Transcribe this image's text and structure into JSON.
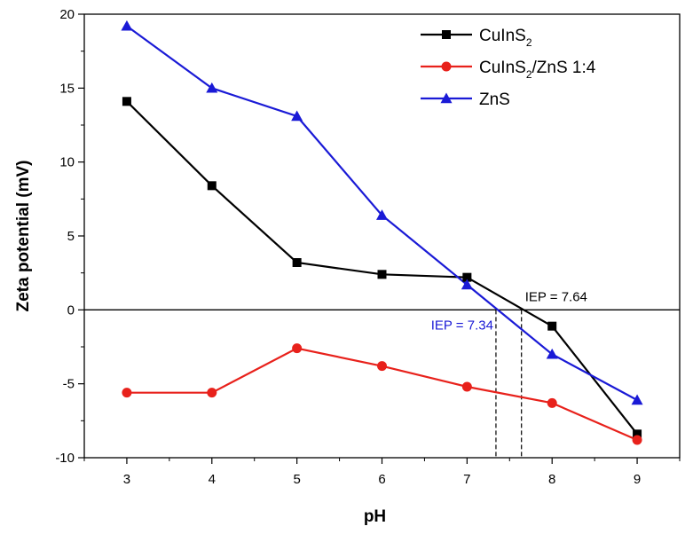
{
  "chart_data": {
    "type": "line",
    "title": "",
    "xlabel": "pH",
    "ylabel": "Zeta potential (mV)",
    "xlim": [
      2.5,
      9.5
    ],
    "ylim": [
      -10,
      20
    ],
    "x_ticks": [
      "3",
      "4",
      "5",
      "6",
      "7",
      "8",
      "9"
    ],
    "y_ticks": [
      "-10",
      "-5",
      "0",
      "5",
      "10",
      "15",
      "20"
    ],
    "x": [
      3,
      4,
      5,
      6,
      7,
      8,
      9
    ],
    "grid": false,
    "legend_position": "top-right",
    "series": [
      {
        "name": "CuInS2",
        "legend_main": "CuInS",
        "legend_sub": "2",
        "legend_tail": "",
        "marker": "square",
        "color": "#000000",
        "values": [
          14.1,
          8.4,
          3.2,
          2.4,
          2.2,
          -1.1,
          -8.4
        ]
      },
      {
        "name": "CuInS2/ZnS 1:4",
        "legend_main": "CuInS",
        "legend_sub": "2",
        "legend_tail": "/ZnS 1:4",
        "marker": "circle",
        "color": "#e8211b",
        "values": [
          -5.6,
          -5.6,
          -2.6,
          -3.8,
          -5.2,
          -6.3,
          -8.8
        ]
      },
      {
        "name": "ZnS",
        "legend_main": "ZnS",
        "legend_sub": "",
        "legend_tail": "",
        "marker": "triangle",
        "color": "#1a1ad6",
        "values": [
          19.2,
          15.0,
          13.1,
          6.4,
          1.7,
          -3.0,
          -6.1
        ]
      }
    ],
    "reference_line_y": 0,
    "annotations": [
      {
        "text": "IEP = 7.64",
        "x": 7.64,
        "color": "#000000"
      },
      {
        "text": "IEP = 7.34",
        "x": 7.34,
        "color": "#1a1ad6"
      }
    ]
  }
}
